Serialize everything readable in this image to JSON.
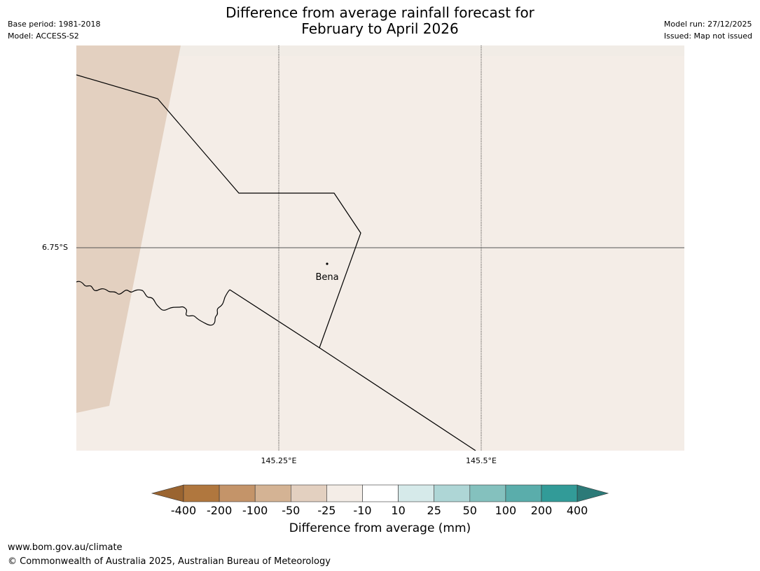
{
  "title": {
    "line1": "Difference from average rainfall forecast for",
    "line2": "February to April 2026"
  },
  "meta": {
    "base_period": "Base period: 1981-2018",
    "model": "Model: ACCESS-S2",
    "model_run": "Model run: 27/12/2025",
    "issued": "Issued: Map not issued"
  },
  "map": {
    "latitude_labels": [
      "6.75°S"
    ],
    "longitude_labels": [
      "145.25°E",
      "145.5°E"
    ],
    "places": [
      {
        "name": "Bena"
      }
    ],
    "colors": {
      "background": "#f4ede7",
      "west_band": "#e3d0c0",
      "grid": "#555555",
      "border": "#000000"
    }
  },
  "colorbar": {
    "title": "Difference from average (mm)",
    "ticks": [
      "-400",
      "-200",
      "-100",
      "-50",
      "-25",
      "-10",
      "10",
      "25",
      "50",
      "100",
      "200",
      "400"
    ],
    "colors": [
      "#9a6430",
      "#b0773e",
      "#c49469",
      "#d4b394",
      "#e3d0c0",
      "#f4ede7",
      "#ffffff",
      "#d6eaea",
      "#aed6d6",
      "#84c1be",
      "#5aadab",
      "#329b98",
      "#2c7a78"
    ]
  },
  "footer": {
    "url": "www.bom.gov.au/climate",
    "copyright": "© Commonwealth of Australia 2025, Australian Bureau of Meteorology"
  }
}
